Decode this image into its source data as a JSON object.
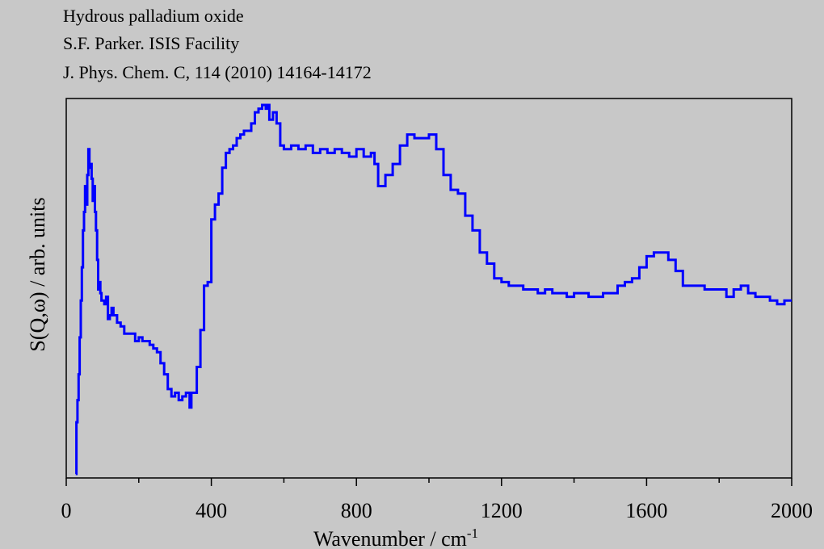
{
  "header": {
    "line1": "Hydrous palladium oxide",
    "line2": "S.F. Parker. ISIS Facility",
    "line3": "J. Phys. Chem. C, 114 (2010) 14164-14172"
  },
  "chart_data": {
    "type": "line",
    "title": "",
    "xlabel": "Wavenumber / cm",
    "xlabel_superscript": "-1",
    "ylabel": "S(Q,ω) / arb. units",
    "xlim": [
      0,
      2000
    ],
    "ylim": [
      0,
      100
    ],
    "x_ticks": [
      0,
      400,
      800,
      1200,
      1600,
      2000
    ],
    "x_tick_labels": [
      "0",
      "400",
      "800",
      "1200",
      "1600",
      "2000"
    ],
    "y_ticks": [],
    "y_axis_note": "arbitrary units, no tick labels",
    "grid": false,
    "line_color": "#0000ff",
    "series": [
      {
        "x": [
          26,
          28,
          31,
          34,
          37,
          40,
          43,
          46,
          49,
          52,
          55,
          58,
          61,
          64,
          67,
          70,
          73,
          76,
          79,
          82,
          85,
          88,
          91,
          94,
          97,
          100,
          105,
          110,
          115,
          120,
          125,
          130,
          140,
          150,
          160,
          170,
          180,
          190,
          200,
          210,
          220,
          230,
          240,
          250,
          260,
          270,
          280,
          290,
          300,
          310,
          320,
          330,
          340,
          345,
          350,
          360,
          370,
          380,
          390,
          400,
          410,
          420,
          430,
          440,
          450,
          460,
          470,
          480,
          490,
          500,
          510,
          520,
          530,
          540,
          550,
          555,
          560,
          570,
          580,
          590,
          600,
          620,
          640,
          660,
          680,
          700,
          720,
          740,
          760,
          780,
          800,
          820,
          840,
          850,
          860,
          880,
          900,
          920,
          940,
          960,
          980,
          1000,
          1020,
          1040,
          1060,
          1080,
          1100,
          1120,
          1140,
          1160,
          1180,
          1200,
          1220,
          1240,
          1260,
          1280,
          1300,
          1320,
          1340,
          1360,
          1380,
          1400,
          1420,
          1440,
          1460,
          1480,
          1500,
          1520,
          1540,
          1560,
          1580,
          1600,
          1620,
          1640,
          1660,
          1680,
          1700,
          1720,
          1740,
          1760,
          1780,
          1800,
          1820,
          1840,
          1860,
          1880,
          1900,
          1920,
          1940,
          1960,
          1980,
          2000
        ],
        "y": [
          0,
          14,
          20,
          27,
          37,
          47,
          56,
          66,
          71,
          78,
          73,
          81,
          88,
          83,
          84,
          80,
          74,
          78,
          71,
          66,
          58,
          50,
          52,
          49,
          47,
          47,
          46,
          48,
          42,
          43,
          45,
          43,
          41,
          40,
          38,
          38,
          38,
          36,
          37,
          36,
          36,
          35,
          34,
          33,
          30,
          27,
          23,
          21,
          22,
          20,
          21,
          22,
          18,
          22,
          22,
          29,
          39,
          51,
          52,
          69,
          73,
          76,
          83,
          87,
          88,
          89,
          91,
          92,
          93,
          93,
          95,
          98,
          99,
          100,
          99,
          100,
          96,
          98,
          95,
          89,
          88,
          89,
          88,
          89,
          87,
          88,
          87,
          88,
          87,
          86,
          88,
          86,
          87,
          84,
          78,
          81,
          84,
          89,
          92,
          91,
          91,
          92,
          88,
          81,
          77,
          76,
          70,
          66,
          60,
          57,
          53,
          52,
          51,
          51,
          50,
          50,
          49,
          50,
          49,
          49,
          48,
          49,
          49,
          48,
          48,
          49,
          49,
          51,
          52,
          53,
          56,
          59,
          60,
          60,
          58,
          55,
          51,
          51,
          51,
          50,
          50,
          50,
          48,
          50,
          51,
          49,
          48,
          48,
          47,
          46,
          47,
          47
        ]
      }
    ]
  }
}
